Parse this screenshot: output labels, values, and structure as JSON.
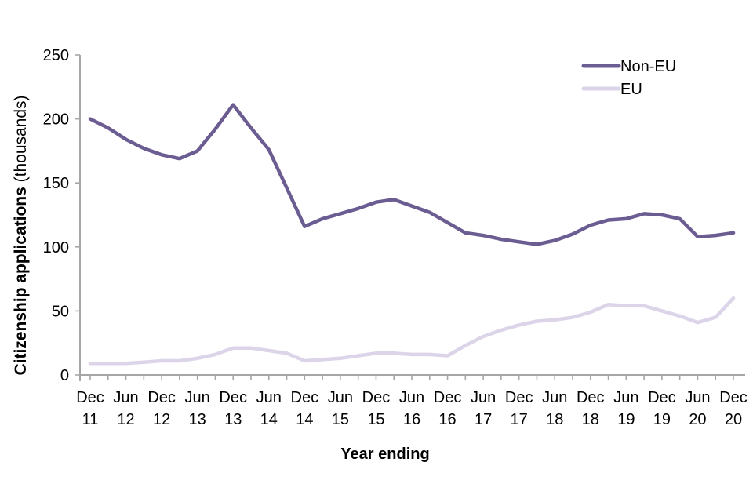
{
  "chart_data": {
    "type": "line",
    "title": "",
    "xlabel": "Year ending",
    "ylabel_bold": "Citizenship applications ",
    "ylabel_unit": "(thousands)",
    "ylim": [
      0,
      250
    ],
    "yticks": [
      0,
      50,
      100,
      150,
      200,
      250
    ],
    "grid": false,
    "legend_position": "top-right",
    "axis_color": "#a6a6a6",
    "x_labels": [
      {
        "month": "Dec",
        "year": "11"
      },
      {
        "month": "Jun",
        "year": "12"
      },
      {
        "month": "Dec",
        "year": "12"
      },
      {
        "month": "Jun",
        "year": "13"
      },
      {
        "month": "Dec",
        "year": "13"
      },
      {
        "month": "Jun",
        "year": "14"
      },
      {
        "month": "Dec",
        "year": "14"
      },
      {
        "month": "Jun",
        "year": "15"
      },
      {
        "month": "Dec",
        "year": "15"
      },
      {
        "month": "Jun",
        "year": "16"
      },
      {
        "month": "Dec",
        "year": "16"
      },
      {
        "month": "Jun",
        "year": "17"
      },
      {
        "month": "Dec",
        "year": "17"
      },
      {
        "month": "Jun",
        "year": "18"
      },
      {
        "month": "Dec",
        "year": "18"
      },
      {
        "month": "Jun",
        "year": "19"
      },
      {
        "month": "Dec",
        "year": "19"
      },
      {
        "month": "Jun",
        "year": "20"
      },
      {
        "month": "Dec",
        "year": "20"
      }
    ],
    "points_per_label": 2,
    "series": [
      {
        "name": "Non-EU",
        "color": "#6b5c92",
        "values": [
          200,
          193,
          184,
          177,
          172,
          169,
          175,
          192,
          211,
          193,
          176,
          146,
          116,
          122,
          126,
          130,
          135,
          137,
          132,
          127,
          119,
          111,
          109,
          106,
          104,
          102,
          105,
          110,
          117,
          121,
          122,
          126,
          125,
          122,
          108,
          109,
          111
        ]
      },
      {
        "name": "EU",
        "color": "#dcd5e9",
        "values": [
          9,
          9,
          9,
          10,
          11,
          11,
          13,
          16,
          21,
          21,
          19,
          17,
          11,
          12,
          13,
          15,
          17,
          17,
          16,
          16,
          15,
          23,
          30,
          35,
          39,
          42,
          43,
          45,
          49,
          55,
          54,
          54,
          50,
          46,
          41,
          45,
          60
        ]
      }
    ]
  }
}
